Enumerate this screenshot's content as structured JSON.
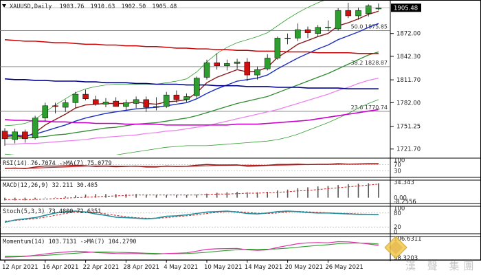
{
  "chart_data": {
    "type": "candlestick",
    "symbol_label": "XAUUSD,Daily",
    "ohlc_header": [
      "1903.76",
      "1910.63",
      "1902.50",
      "1905.48"
    ],
    "last_price_label": "1905.48",
    "price_ticks": [
      "1872.00",
      "1842.30",
      "1811.70",
      "1782.00",
      "1751.25",
      "1721.70"
    ],
    "price_tick_values": [
      1872.0,
      1842.3,
      1811.7,
      1782.0,
      1751.25,
      1721.7
    ],
    "ylim": [
      1717,
      1912
    ],
    "date_labels": [
      "12 Apr 2021",
      "16 Apr 2021",
      "22 Apr 2021",
      "28 Apr 2021",
      "4 May 2021",
      "10 May 2021",
      "14 May 2021",
      "20 May 2021",
      "26 May 2021"
    ],
    "date_label_index": [
      0,
      4,
      8,
      12,
      16,
      20,
      24,
      28,
      32
    ],
    "candles": [
      [
        1745,
        1749,
        1726,
        1735
      ],
      [
        1734,
        1748,
        1729,
        1744
      ],
      [
        1744,
        1747,
        1730,
        1735
      ],
      [
        1736,
        1765,
        1734,
        1762
      ],
      [
        1762,
        1782,
        1758,
        1778
      ],
      [
        1778,
        1782,
        1768,
        1777
      ],
      [
        1776,
        1786,
        1770,
        1782
      ],
      [
        1782,
        1796,
        1775,
        1793
      ],
      [
        1793,
        1799,
        1785,
        1787
      ],
      [
        1786,
        1791,
        1778,
        1780
      ],
      [
        1780,
        1788,
        1776,
        1783
      ],
      [
        1784,
        1789,
        1778,
        1777
      ],
      [
        1777,
        1786,
        1772,
        1782
      ],
      [
        1781,
        1790,
        1775,
        1786
      ],
      [
        1786,
        1790,
        1770,
        1776
      ],
      [
        1776,
        1789,
        1772,
        1777
      ],
      [
        1777,
        1796,
        1775,
        1792
      ],
      [
        1792,
        1798,
        1782,
        1786
      ],
      [
        1786,
        1794,
        1783,
        1790
      ],
      [
        1791,
        1816,
        1788,
        1814
      ],
      [
        1815,
        1838,
        1812,
        1834
      ],
      [
        1834,
        1846,
        1825,
        1830
      ],
      [
        1830,
        1838,
        1824,
        1833
      ],
      [
        1833,
        1839,
        1826,
        1835
      ],
      [
        1835,
        1840,
        1810,
        1818
      ],
      [
        1818,
        1829,
        1812,
        1825
      ],
      [
        1826,
        1845,
        1824,
        1840
      ],
      [
        1840,
        1868,
        1838,
        1866
      ],
      [
        1866,
        1872,
        1858,
        1866
      ],
      [
        1866,
        1885,
        1862,
        1877
      ],
      [
        1877,
        1881,
        1866,
        1873
      ],
      [
        1872,
        1883,
        1868,
        1880
      ],
      [
        1880,
        1889,
        1875,
        1880
      ],
      [
        1878,
        1905,
        1876,
        1902
      ],
      [
        1902,
        1912,
        1892,
        1895
      ],
      [
        1895,
        1906,
        1890,
        1902
      ],
      [
        1898,
        1910,
        1894,
        1908
      ],
      [
        1904,
        1911,
        1902,
        1905
      ]
    ],
    "moving_averages": [
      {
        "color": "#8b1a1a",
        "values": [
          1738,
          1739,
          1737,
          1743,
          1753,
          1760,
          1767,
          1775,
          1779,
          1780,
          1781,
          1781,
          1781,
          1783,
          1781,
          1780,
          1783,
          1784,
          1786,
          1795,
          1808,
          1815,
          1820,
          1825,
          1822,
          1823,
          1828,
          1841,
          1849,
          1858,
          1863,
          1868,
          1872,
          1882,
          1886,
          1891,
          1897,
          1901
        ]
      },
      {
        "color": "#1b2fbf",
        "values": [
          1740,
          1740,
          1739,
          1741,
          1745,
          1749,
          1753,
          1758,
          1762,
          1765,
          1768,
          1770,
          1772,
          1774,
          1775,
          1776,
          1778,
          1780,
          1782,
          1787,
          1794,
          1800,
          1805,
          1810,
          1812,
          1814,
          1818,
          1826,
          1833,
          1840,
          1846,
          1852,
          1857,
          1864,
          1869,
          1874,
          1880,
          1885
        ]
      },
      {
        "color": "#2e8b2e",
        "values": [
          1736,
          1736,
          1736,
          1737,
          1738,
          1740,
          1741,
          1743,
          1745,
          1747,
          1749,
          1750,
          1752,
          1754,
          1755,
          1756,
          1758,
          1760,
          1762,
          1765,
          1769,
          1773,
          1777,
          1781,
          1784,
          1787,
          1790,
          1795,
          1800,
          1805,
          1810,
          1815,
          1820,
          1826,
          1832,
          1838,
          1844,
          1848
        ]
      },
      {
        "color": "#ee82ee",
        "values": [
          1728,
          1728,
          1729,
          1729,
          1730,
          1731,
          1732,
          1733,
          1734,
          1736,
          1737,
          1738,
          1739,
          1740,
          1742,
          1743,
          1745,
          1746,
          1748,
          1750,
          1752,
          1755,
          1758,
          1761,
          1764,
          1767,
          1770,
          1773,
          1777,
          1781,
          1785,
          1789,
          1793,
          1798,
          1802,
          1807,
          1811,
          1814
        ]
      },
      {
        "color": "#cc0000",
        "values": [
          1864,
          1863,
          1862,
          1862,
          1861,
          1860,
          1860,
          1859,
          1858,
          1858,
          1857,
          1857,
          1856,
          1856,
          1855,
          1855,
          1854,
          1853,
          1853,
          1852,
          1852,
          1851,
          1851,
          1850,
          1850,
          1849,
          1849,
          1849,
          1848,
          1848,
          1848,
          1847,
          1847,
          1847,
          1847,
          1846,
          1846,
          1846
        ]
      },
      {
        "color": "#00008b",
        "values": [
          1813,
          1812,
          1812,
          1811,
          1811,
          1810,
          1810,
          1810,
          1809,
          1809,
          1808,
          1808,
          1808,
          1807,
          1807,
          1806,
          1806,
          1806,
          1805,
          1805,
          1805,
          1804,
          1804,
          1804,
          1803,
          1803,
          1803,
          1802,
          1802,
          1802,
          1801,
          1801,
          1801,
          1801,
          1800,
          1800,
          1800,
          1800
        ]
      },
      {
        "color": "#cc00cc",
        "values": [
          1760,
          1759,
          1759,
          1758,
          1758,
          1757,
          1757,
          1756,
          1756,
          1755,
          1755,
          1755,
          1754,
          1754,
          1754,
          1754,
          1753,
          1753,
          1753,
          1753,
          1753,
          1753,
          1753,
          1754,
          1754,
          1754,
          1755,
          1756,
          1757,
          1758,
          1759,
          1761,
          1763,
          1765,
          1767,
          1769,
          1771,
          1773
        ]
      }
    ],
    "bollinger": {
      "color": "#2e9e2e",
      "upper": [
        1752,
        1753,
        1755,
        1760,
        1770,
        1779,
        1787,
        1795,
        1800,
        1803,
        1805,
        1806,
        1806,
        1806,
        1806,
        1806,
        1808,
        1810,
        1813,
        1822,
        1835,
        1846,
        1854,
        1860,
        1864,
        1868,
        1873,
        1882,
        1891,
        1899,
        1906,
        1912,
        1917,
        1924,
        1928,
        1932,
        1935,
        1938
      ],
      "lower": [
        1715,
        1714,
        1712,
        1710,
        1708,
        1706,
        1706,
        1706,
        1707,
        1709,
        1711,
        1714,
        1716,
        1718,
        1720,
        1722,
        1724,
        1725,
        1726,
        1726,
        1726,
        1727,
        1728,
        1729,
        1730,
        1731,
        1732,
        1734,
        1737,
        1741,
        1746,
        1751,
        1756,
        1762,
        1768,
        1775,
        1781,
        1786
      ]
    },
    "fib_levels": [
      {
        "label": "50.0 1875.85",
        "value": 1875.85
      },
      {
        "label": "38.2 1828.87",
        "value": 1828.87
      },
      {
        "label": "23.6 1770.74",
        "value": 1770.74
      }
    ],
    "indicators": {
      "rsi": {
        "label": "RSI(14) 76.7074  ->MA(7) 75.0779",
        "axis": [
          "100",
          "70",
          "30"
        ],
        "values": [
          45,
          48,
          44,
          55,
          62,
          61,
          63,
          66,
          63,
          58,
          60,
          57,
          59,
          61,
          55,
          55,
          62,
          58,
          60,
          67,
          72,
          68,
          68,
          69,
          60,
          62,
          66,
          72,
          72,
          74,
          71,
          73,
          73,
          77,
          74,
          75,
          77,
          77
        ],
        "ma_values": [
          46,
          46,
          46,
          48,
          51,
          53,
          55,
          58,
          61,
          62,
          62,
          61,
          60,
          59,
          59,
          58,
          59,
          59,
          59,
          61,
          63,
          65,
          66,
          67,
          67,
          66,
          66,
          67,
          68,
          70,
          71,
          72,
          72,
          73,
          74,
          74,
          75,
          75
        ],
        "lim": [
          0,
          100
        ]
      },
      "macd": {
        "label": "MACD(12,26,9) 32.211 30.405",
        "axis": [
          "34.343",
          "0.00",
          "-8.2556"
        ],
        "values": [
          -6,
          -6,
          -6,
          -4,
          -1,
          1,
          3,
          5,
          7,
          8,
          8,
          8,
          8,
          8,
          7,
          6,
          6,
          6,
          6,
          7,
          9,
          11,
          12,
          13,
          12,
          12,
          13,
          16,
          18,
          21,
          23,
          25,
          26,
          28,
          30,
          31,
          32,
          32
        ],
        "signal": [
          -4,
          -4,
          -4,
          -4,
          -3,
          -2,
          -1,
          0,
          1,
          2,
          3,
          4,
          5,
          6,
          6,
          6,
          6,
          6,
          6,
          6,
          7,
          8,
          8,
          9,
          10,
          10,
          11,
          12,
          13,
          15,
          16,
          18,
          20,
          22,
          24,
          26,
          28,
          30
        ],
        "lim": [
          -8.2556,
          34.343
        ]
      },
      "stoch": {
        "label": "Stoch(5,3,3) 73.4800 72.6351",
        "axis": [
          "100",
          "80",
          "20",
          "0"
        ],
        "k": [
          40,
          50,
          55,
          60,
          70,
          80,
          85,
          88,
          84,
          76,
          70,
          62,
          60,
          58,
          55,
          58,
          66,
          68,
          72,
          78,
          84,
          86,
          88,
          84,
          78,
          76,
          80,
          86,
          88,
          86,
          82,
          80,
          80,
          78,
          76,
          74,
          74,
          73
        ],
        "d": [
          45,
          48,
          52,
          56,
          62,
          70,
          78,
          84,
          86,
          82,
          76,
          70,
          64,
          60,
          58,
          57,
          60,
          64,
          68,
          72,
          78,
          83,
          86,
          86,
          83,
          79,
          78,
          80,
          85,
          87,
          85,
          83,
          81,
          79,
          78,
          76,
          75,
          73
        ],
        "lim": [
          0,
          100
        ]
      },
      "momentum": {
        "label": "Momentum(14) 103.7131  ->MA(7) 104.2790",
        "axis": [
          "106.6311",
          "98.3203"
        ],
        "values": [
          98.6,
          98.7,
          98.9,
          99.4,
          100.0,
          100.5,
          100.8,
          101.2,
          101.0,
          100.6,
          100.4,
          100.2,
          100.1,
          100.2,
          100.0,
          99.9,
          100.2,
          100.3,
          100.5,
          101.2,
          102.0,
          102.2,
          102.3,
          102.4,
          101.8,
          101.5,
          101.8,
          102.8,
          103.6,
          104.4,
          104.8,
          104.9,
          104.8,
          105.3,
          105.2,
          104.8,
          104.3,
          103.7
        ],
        "ma_values": [
          99.0,
          99.0,
          99.1,
          99.2,
          99.4,
          99.7,
          100.0,
          100.3,
          100.6,
          100.8,
          100.8,
          100.7,
          100.6,
          100.5,
          100.3,
          100.2,
          100.1,
          100.1,
          100.2,
          100.4,
          100.7,
          101.1,
          101.5,
          101.8,
          102.0,
          102.0,
          102.0,
          102.2,
          102.5,
          102.9,
          103.3,
          103.7,
          104.0,
          104.4,
          104.6,
          104.7,
          104.6,
          104.3
        ],
        "lim": [
          98.3203,
          106.6311
        ]
      }
    }
  },
  "watermark": {
    "text": "漢 聲 集團",
    "logo_icon": "diamond-logo-icon"
  },
  "colors": {
    "bull": "#2e9e2e",
    "bear": "#cc1111",
    "grid": "#9a9a9a",
    "text": "#222222"
  }
}
